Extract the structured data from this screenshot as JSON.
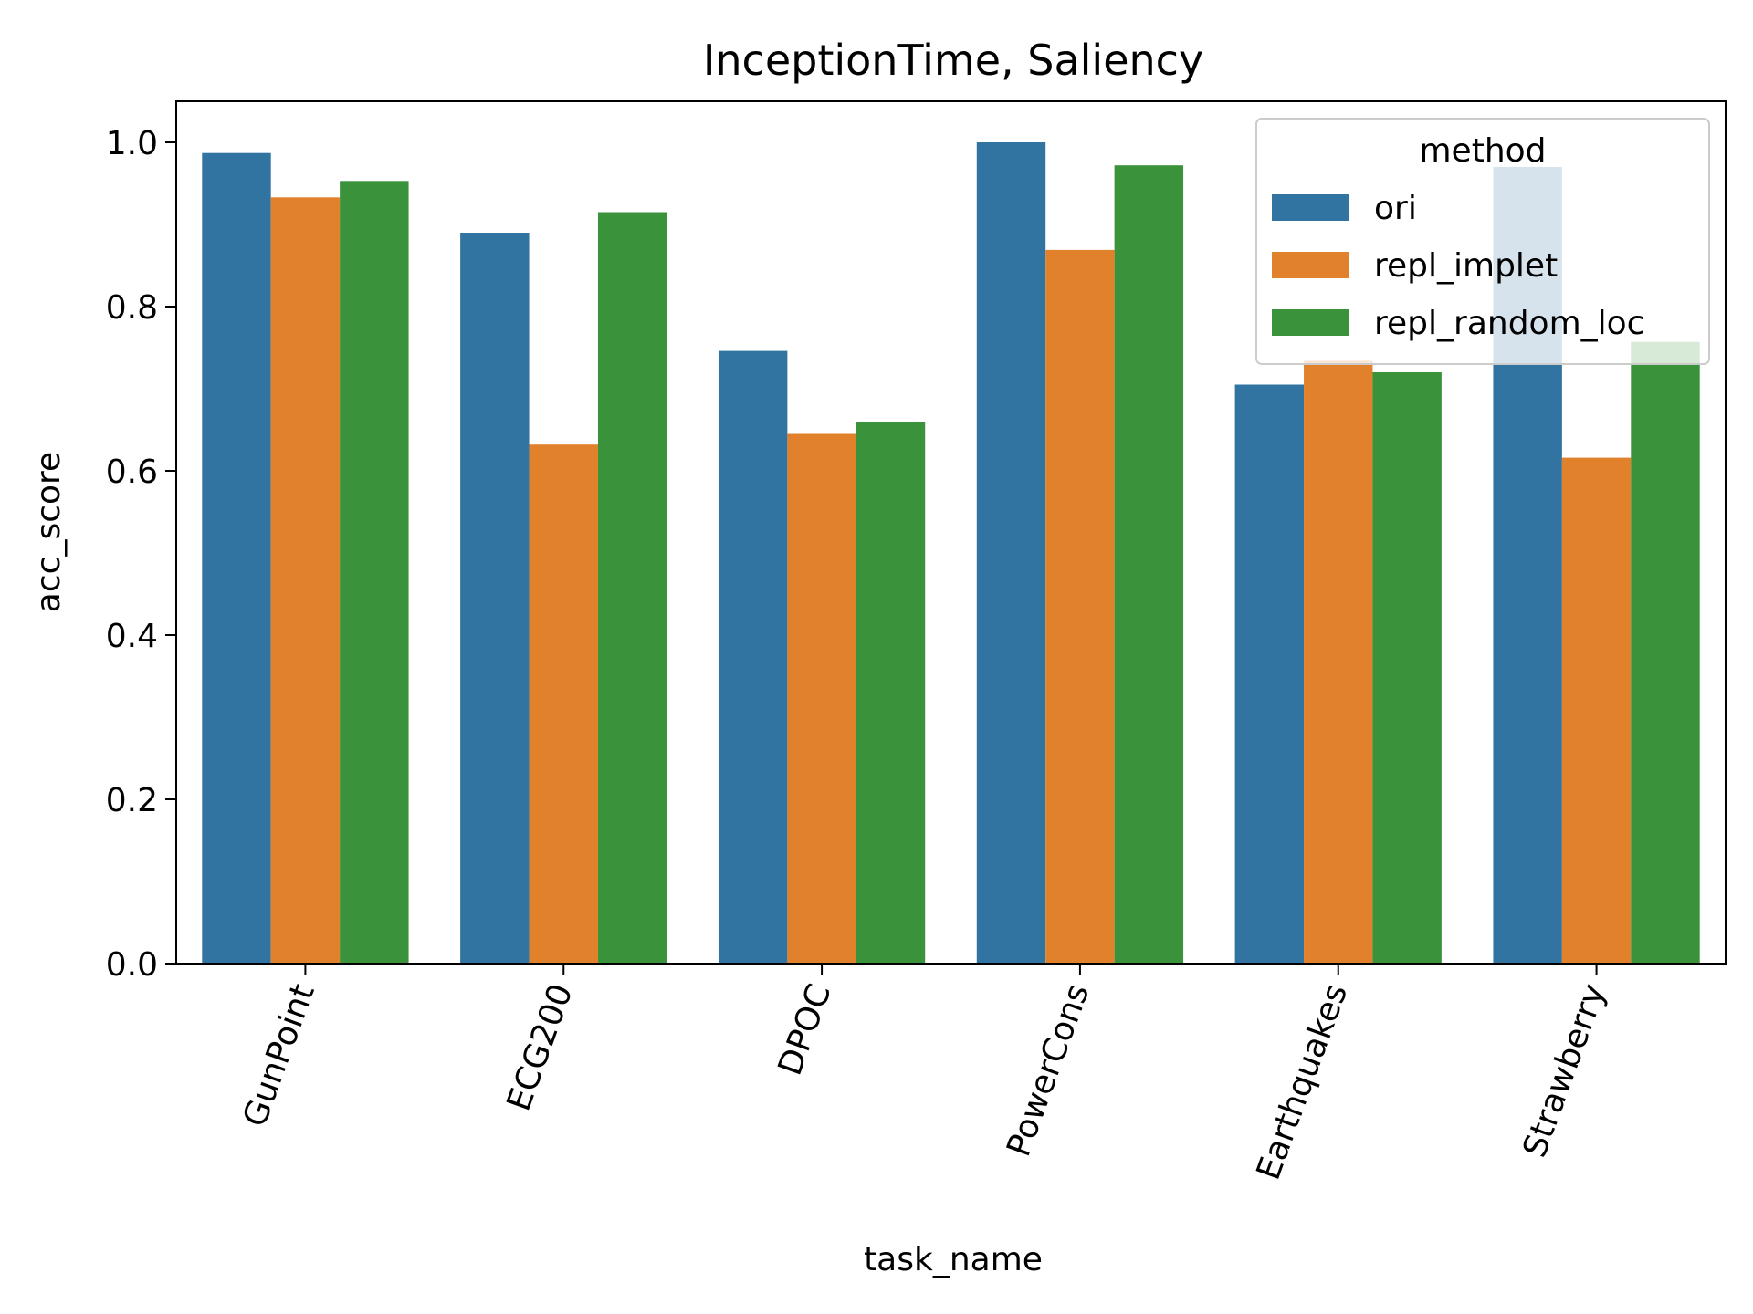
{
  "chart_data": {
    "type": "bar",
    "title": "InceptionTime, Saliency",
    "xlabel": "task_name",
    "ylabel": "acc_score",
    "ylim": [
      0,
      1.05
    ],
    "yticks": [
      "0.0",
      "0.2",
      "0.4",
      "0.6",
      "0.8",
      "1.0"
    ],
    "categories": [
      "GunPoint",
      "ECG200",
      "DPOC",
      "PowerCons",
      "Earthquakes",
      "Strawberry"
    ],
    "legend": {
      "title": "method",
      "placement": "top-right"
    },
    "grid": false,
    "series": [
      {
        "name": "ori",
        "color": "#3274a1",
        "values": [
          0.987,
          0.89,
          0.746,
          1.0,
          0.705,
          0.97
        ]
      },
      {
        "name": "repl_implet",
        "color": "#e1812c",
        "values": [
          0.933,
          0.632,
          0.645,
          0.869,
          0.734,
          0.616
        ]
      },
      {
        "name": "repl_random_loc",
        "color": "#3a923a",
        "values": [
          0.953,
          0.915,
          0.66,
          0.972,
          0.72,
          0.757
        ]
      }
    ]
  }
}
